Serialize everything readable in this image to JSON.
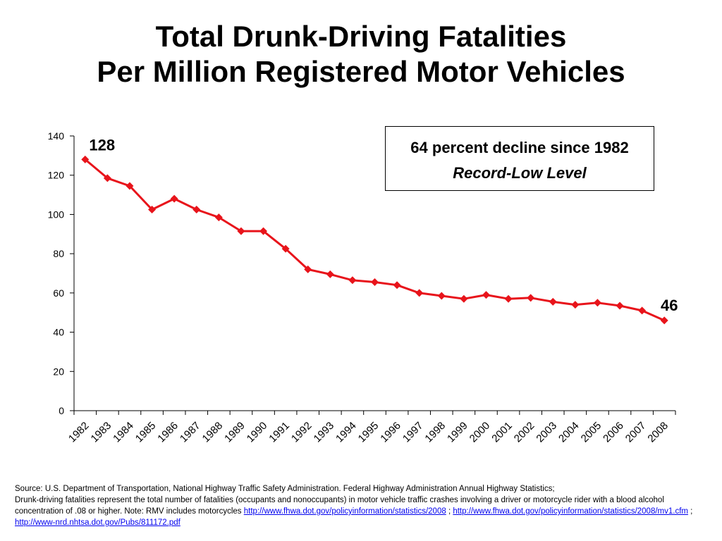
{
  "title": {
    "line1": "Total Drunk-Driving Fatalities",
    "line2": "Per Million Registered Motor Vehicles"
  },
  "callout": {
    "line1": "64 percent decline since 1982",
    "line2": "Record-Low Level"
  },
  "footnote": {
    "line1": "Source: U.S. Department of Transportation, National Highway Traffic Safety Administration.  Federal Highway Administration Annual Highway Statistics;",
    "line2": "Drunk-driving fatalities represent the total number of fatalities (occupants and nonoccupants) in motor vehicle traffic crashes involving a driver or motorcycle rider with a blood alcohol concentration of .08 or higher. Note: RMV includes motorcycles",
    "link1": "http://www.fhwa.dot.gov/policyinformation/statistics/2008",
    "sep1": " ; ",
    "link2": "http://www.fhwa.dot.gov/policyinformation/statistics/2008/mv1.cfm",
    "sep2": " ; ",
    "link3": "http://www-nrd.nhtsa.dot.gov/Pubs/811172.pdf"
  },
  "chart_data": {
    "type": "line",
    "title": "Total Drunk-Driving Fatalities Per Million Registered Motor Vehicles",
    "xlabel": "",
    "ylabel": "",
    "ylim": [
      0,
      140
    ],
    "yticks": [
      0,
      20,
      40,
      60,
      80,
      100,
      120,
      140
    ],
    "grid": false,
    "legend": "none",
    "series_color": "#e8141b",
    "marker": "diamond",
    "categories": [
      "1982",
      "1983",
      "1984",
      "1985",
      "1986",
      "1987",
      "1988",
      "1989",
      "1990",
      "1991",
      "1992",
      "1993",
      "1994",
      "1995",
      "1996",
      "1997",
      "1998",
      "1999",
      "2000",
      "2001",
      "2002",
      "2003",
      "2004",
      "2005",
      "2006",
      "2007",
      "2008"
    ],
    "series": [
      {
        "values": [
          128,
          118.5,
          114.5,
          102.5,
          108,
          102.5,
          98.5,
          91.5,
          91.5,
          82.5,
          72,
          69.5,
          66.5,
          65.5,
          64,
          60,
          58.5,
          57,
          59,
          57,
          57.5,
          55.5,
          54,
          55,
          53.5,
          51,
          46
        ]
      }
    ],
    "annotations": [
      {
        "category": "1982",
        "text": "128"
      },
      {
        "category": "2008",
        "text": "46"
      }
    ]
  }
}
